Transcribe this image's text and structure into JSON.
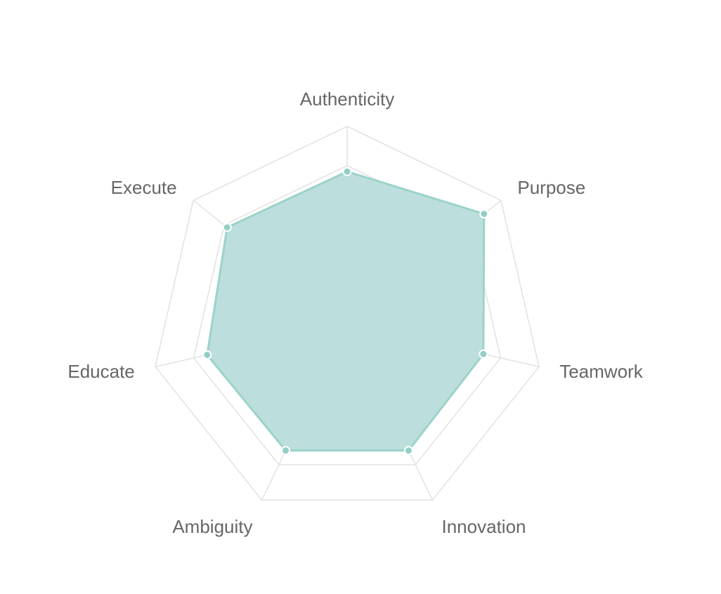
{
  "chart_data": {
    "type": "radar",
    "title": "",
    "axes": [
      "Authenticity",
      "Purpose",
      "Teamwork",
      "Innovation",
      "Ambiguity",
      "Educate",
      "Execute"
    ],
    "series": [
      {
        "values": [
          7.7,
          8.9,
          7.1,
          7.2,
          7.2,
          7.3,
          7.8
        ]
      }
    ],
    "scale": {
      "min": 0,
      "max": 10,
      "rings": 9,
      "inner_step": 1
    },
    "grid": true,
    "legend": "none",
    "colors": {
      "fill": "#bcdedc",
      "stroke": "#9bd3ca",
      "point": "#94cfc6",
      "point_border": "#ffffff",
      "grid": "#e2e2e2",
      "label": "#666666"
    }
  }
}
